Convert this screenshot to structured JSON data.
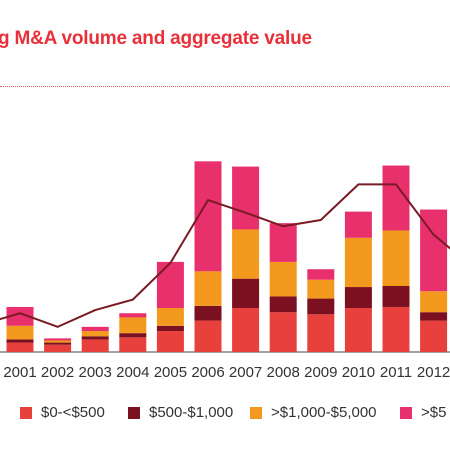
{
  "chart_data": {
    "type": "bar",
    "title": "g M&A volume and aggregate value",
    "categories": [
      "2001",
      "2002",
      "2003",
      "2004",
      "2005",
      "2006",
      "2007",
      "2008",
      "2009",
      "2010",
      "2011",
      "2012"
    ],
    "series": [
      {
        "name": "$0-<$500",
        "color": "#e8403c",
        "values": [
          9,
          7,
          12,
          14,
          20,
          30,
          42,
          38,
          36,
          42,
          43,
          30
        ]
      },
      {
        "name": "$500-$1,000",
        "color": "#7a1020",
        "values": [
          3,
          2,
          3,
          4,
          5,
          14,
          28,
          15,
          15,
          20,
          20,
          8
        ]
      },
      {
        "name": ">$1,000-$5,000",
        "color": "#f39a1e",
        "values": [
          13,
          2,
          5,
          15,
          17,
          33,
          47,
          33,
          18,
          47,
          53,
          20
        ]
      },
      {
        "name": ">$5",
        "color": "#e8306c",
        "values": [
          18,
          2,
          4,
          4,
          44,
          105,
          60,
          37,
          10,
          25,
          62,
          78
        ]
      }
    ],
    "line": {
      "color": "#7a1a24",
      "values": [
        37,
        24,
        40,
        50,
        85,
        145,
        133,
        120,
        126,
        160,
        160,
        112
      ]
    },
    "ylim": [
      0,
      210
    ],
    "legend_position": "bottom",
    "legend_prefix_fragment": "e"
  }
}
